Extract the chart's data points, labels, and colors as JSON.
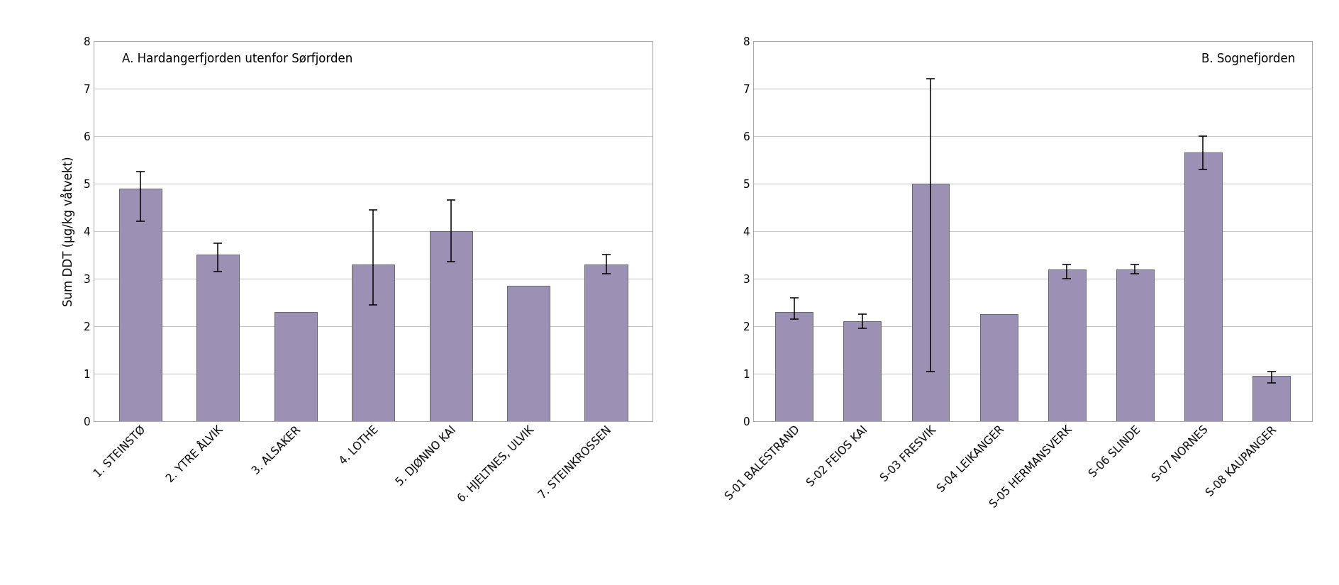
{
  "panel_A": {
    "title": "A. Hardangerfjorden utenfor Sørfjorden",
    "categories": [
      "1. STEINSTØ",
      "2. YTRE ÅLVIK",
      "3. ALSAKER",
      "4. LOTHE",
      "5. DJØNNO KAI",
      "6. HJELTNES, ULVIK",
      "7. STEINKROSSEN"
    ],
    "values": [
      4.9,
      3.5,
      2.3,
      3.3,
      4.0,
      2.85,
      3.3
    ],
    "errors_low": [
      0.7,
      0.35,
      0.0,
      0.85,
      0.65,
      0.0,
      0.2
    ],
    "errors_high": [
      0.35,
      0.25,
      0.0,
      1.15,
      0.65,
      0.0,
      0.2
    ]
  },
  "panel_B": {
    "title": "B. Sognefjorden",
    "categories": [
      "S-01 BALESTRAND",
      "S-02 FEIOS KAI",
      "S-03 FRESVIK",
      "S-04 LEIKANGER",
      "S-05 HERMANSVERK",
      "S-06 SLINDE",
      "S-07 NORNES",
      "S-08 KAUPANGER"
    ],
    "values": [
      2.3,
      2.1,
      5.0,
      2.25,
      3.2,
      3.2,
      5.65,
      0.95
    ],
    "errors_low": [
      0.15,
      0.15,
      3.95,
      0.0,
      0.2,
      0.1,
      0.35,
      0.15
    ],
    "errors_high": [
      0.3,
      0.15,
      2.2,
      0.0,
      0.1,
      0.1,
      0.35,
      0.1
    ]
  },
  "bar_color": "#9B91B5",
  "bar_edgecolor": "#666666",
  "ylabel": "Sum DDT (μg/kg våtvekt)",
  "ylim": [
    0,
    8
  ],
  "yticks": [
    0,
    1,
    2,
    3,
    4,
    5,
    6,
    7,
    8
  ],
  "bg_color": "#ffffff",
  "grid_color": "#c8c8c8",
  "title_fontsize": 12,
  "label_fontsize": 12,
  "tick_fontsize": 11
}
